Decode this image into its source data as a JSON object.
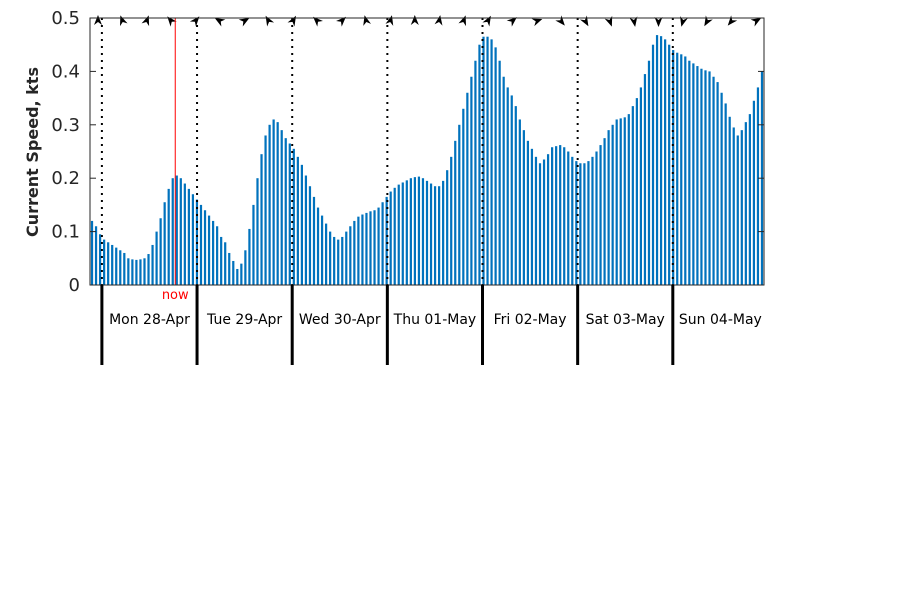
{
  "chart_data": {
    "type": "bar",
    "ylabel": "Current Speed, kts",
    "ylim": [
      0,
      0.5
    ],
    "yticks": [
      "0",
      "0.1",
      "0.2",
      "0.3",
      "0.4",
      "0.5"
    ],
    "days": [
      "Mon 28-Apr",
      "Tue 29-Apr",
      "Wed 30-Apr",
      "Thu 01-May",
      "Fri 02-May",
      "Sat 03-May",
      "Sun 04-May"
    ],
    "now_label": "now",
    "bar_color": "#0072bd",
    "now_color": "#ff0000",
    "time_start": "2025-04-27T21:00",
    "time_end": "2025-05-04T23:00",
    "now_time": "2025-04-28T18:30",
    "values": [
      0.12,
      0.11,
      0.095,
      0.085,
      0.08,
      0.075,
      0.07,
      0.065,
      0.06,
      0.05,
      0.048,
      0.047,
      0.048,
      0.05,
      0.058,
      0.075,
      0.1,
      0.125,
      0.155,
      0.18,
      0.2,
      0.205,
      0.2,
      0.19,
      0.18,
      0.17,
      0.16,
      0.15,
      0.14,
      0.13,
      0.12,
      0.11,
      0.09,
      0.08,
      0.06,
      0.045,
      0.03,
      0.04,
      0.065,
      0.105,
      0.15,
      0.2,
      0.245,
      0.28,
      0.3,
      0.31,
      0.305,
      0.29,
      0.275,
      0.265,
      0.255,
      0.24,
      0.225,
      0.205,
      0.185,
      0.165,
      0.145,
      0.13,
      0.115,
      0.1,
      0.09,
      0.085,
      0.09,
      0.1,
      0.11,
      0.12,
      0.128,
      0.132,
      0.135,
      0.138,
      0.14,
      0.145,
      0.155,
      0.165,
      0.175,
      0.182,
      0.188,
      0.192,
      0.196,
      0.2,
      0.202,
      0.203,
      0.2,
      0.195,
      0.19,
      0.185,
      0.185,
      0.195,
      0.215,
      0.24,
      0.27,
      0.3,
      0.33,
      0.36,
      0.39,
      0.42,
      0.45,
      0.465,
      0.465,
      0.46,
      0.445,
      0.42,
      0.39,
      0.37,
      0.355,
      0.335,
      0.31,
      0.29,
      0.27,
      0.255,
      0.24,
      0.228,
      0.235,
      0.245,
      0.258,
      0.26,
      0.262,
      0.258,
      0.25,
      0.24,
      0.232,
      0.228,
      0.228,
      0.232,
      0.24,
      0.25,
      0.262,
      0.275,
      0.29,
      0.3,
      0.31,
      0.312,
      0.314,
      0.32,
      0.335,
      0.35,
      0.37,
      0.395,
      0.42,
      0.45,
      0.468,
      0.466,
      0.46,
      0.45,
      0.44,
      0.435,
      0.432,
      0.428,
      0.42,
      0.415,
      0.41,
      0.405,
      0.402,
      0.4,
      0.39,
      0.38,
      0.36,
      0.34,
      0.315,
      0.295,
      0.28,
      0.29,
      0.305,
      0.32,
      0.345,
      0.37,
      0.4
    ]
  }
}
